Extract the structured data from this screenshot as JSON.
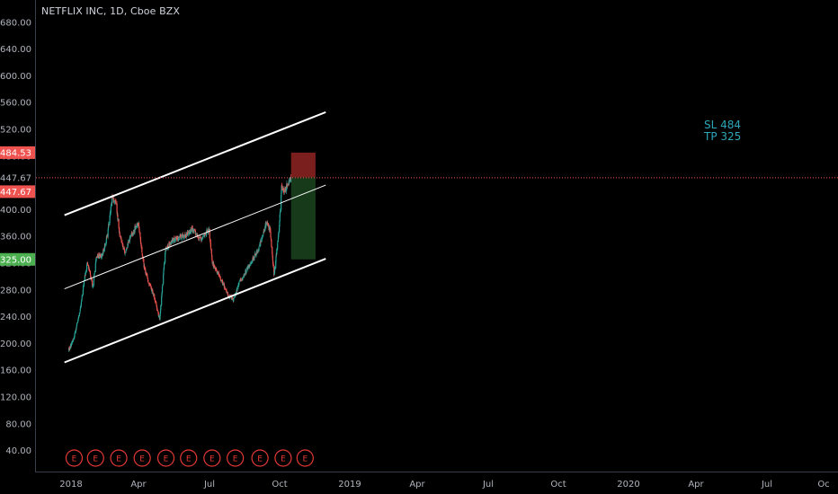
{
  "header": {
    "title": "NETFLIX INC, 1D, Cboe BZX"
  },
  "annotations": {
    "sl": "SL 484",
    "tp": "TP 325"
  },
  "colors": {
    "background": "#000000",
    "axis_text": "#b2b5be",
    "candle_up": "#26a69a",
    "candle_down": "#ef5350",
    "channel": "#ffffff",
    "risk_zone": "#7a1e1e",
    "reward_zone": "#163a1a",
    "label_red": "#ef5350",
    "label_green": "#4caf50",
    "earnings": "#e53935",
    "annotation": "#2ca6b8"
  },
  "price_labels": {
    "stop": "484.53",
    "last": "447.67",
    "entry": "447.67",
    "target": "325.00"
  },
  "earnings_marker": "E",
  "chart_data": {
    "type": "candlestick",
    "title": "NETFLIX INC, 1D, Cboe BZX",
    "y_ticks": [
      "680.00",
      "640.00",
      "600.00",
      "560.00",
      "520.00",
      "480.00",
      "447.67",
      "400.00",
      "360.00",
      "320.00",
      "280.00",
      "240.00",
      "200.00",
      "160.00",
      "120.00",
      "80.00",
      "40.00"
    ],
    "x_ticks": [
      "2018",
      "Apr",
      "Jul",
      "Oct",
      "2019",
      "Apr",
      "Jul",
      "Oct",
      "2020",
      "Apr",
      "Jul",
      "Oc"
    ],
    "ylim": [
      20,
      700
    ],
    "price_path": [
      {
        "date": "2018-01-01",
        "close": 190
      },
      {
        "date": "2018-01-20",
        "close": 205
      },
      {
        "date": "2018-02-15",
        "close": 250
      },
      {
        "date": "2018-03-01",
        "close": 290
      },
      {
        "date": "2018-03-15",
        "close": 320
      },
      {
        "date": "2018-04-05",
        "close": 285
      },
      {
        "date": "2018-04-20",
        "close": 330
      },
      {
        "date": "2018-05-10",
        "close": 330
      },
      {
        "date": "2018-06-01",
        "close": 360
      },
      {
        "date": "2018-06-20",
        "close": 415
      },
      {
        "date": "2018-07-05",
        "close": 410
      },
      {
        "date": "2018-07-20",
        "close": 360
      },
      {
        "date": "2018-08-10",
        "close": 335
      },
      {
        "date": "2018-09-01",
        "close": 360
      },
      {
        "date": "2018-10-01",
        "close": 380
      },
      {
        "date": "2018-10-20",
        "close": 320
      },
      {
        "date": "2018-11-10",
        "close": 290
      },
      {
        "date": "2018-12-01",
        "close": 270
      },
      {
        "date": "2018-12-24",
        "close": 235
      },
      {
        "date": "2019-01-15",
        "close": 340
      },
      {
        "date": "2019-02-15",
        "close": 355
      },
      {
        "date": "2019-04-01",
        "close": 360
      },
      {
        "date": "2019-05-01",
        "close": 370
      },
      {
        "date": "2019-06-01",
        "close": 355
      },
      {
        "date": "2019-07-05",
        "close": 370
      },
      {
        "date": "2019-07-18",
        "close": 320
      },
      {
        "date": "2019-08-15",
        "close": 300
      },
      {
        "date": "2019-09-20",
        "close": 270
      },
      {
        "date": "2019-10-10",
        "close": 265
      },
      {
        "date": "2019-11-01",
        "close": 290
      },
      {
        "date": "2019-12-01",
        "close": 310
      },
      {
        "date": "2020-01-15",
        "close": 340
      },
      {
        "date": "2020-02-15",
        "close": 380
      },
      {
        "date": "2020-03-01",
        "close": 370
      },
      {
        "date": "2020-03-16",
        "close": 300
      },
      {
        "date": "2020-04-05",
        "close": 370
      },
      {
        "date": "2020-04-15",
        "close": 435
      },
      {
        "date": "2020-04-25",
        "close": 425
      },
      {
        "date": "2020-05-10",
        "close": 440
      },
      {
        "date": "2020-05-22",
        "close": 447.67
      }
    ],
    "channel_lines": [
      {
        "name": "upper",
        "start": {
          "date": "2017-12-15",
          "price": 391
        },
        "end": {
          "date": "2020-10-05",
          "price": 545
        }
      },
      {
        "name": "middle",
        "start": {
          "date": "2017-12-15",
          "price": 281
        },
        "end": {
          "date": "2020-10-05",
          "price": 436
        }
      },
      {
        "name": "lower",
        "start": {
          "date": "2017-12-15",
          "price": 171
        },
        "end": {
          "date": "2020-10-05",
          "price": 326
        }
      }
    ],
    "position": {
      "entry": 447.67,
      "stop": 484.53,
      "target": 325.0,
      "from_date": "2020-05-22",
      "to_date": "2020-08-26"
    },
    "earnings_dates": [
      "2018-01-22",
      "2018-04-16",
      "2018-07-16",
      "2018-10-16",
      "2019-01-17",
      "2019-04-16",
      "2019-07-17",
      "2019-10-16",
      "2020-01-21",
      "2020-04-21",
      "2020-07-16"
    ],
    "grid": false,
    "legend": "none"
  }
}
